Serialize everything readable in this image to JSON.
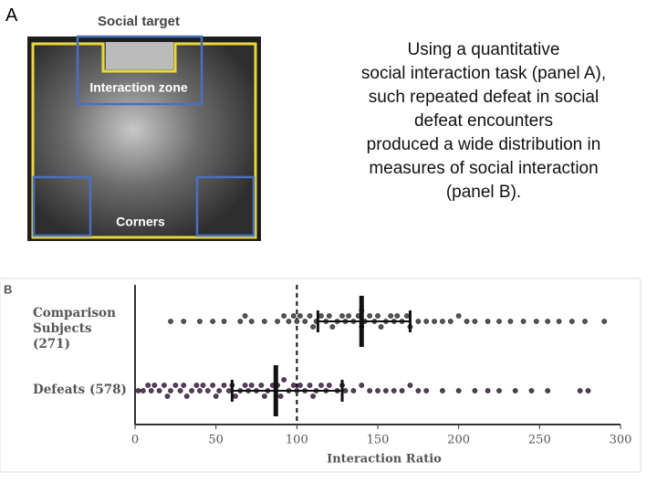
{
  "panel_a": {
    "label": "A",
    "social_target": "Social target",
    "interaction_zone": "Interaction zone",
    "corners": "Corners"
  },
  "text_lines": [
    "Using a quantitative",
    "social interaction task (panel A),",
    "such repeated defeat in social",
    "defeat encounters",
    "produced a wide distribution in",
    "measures of social interaction",
    "(panel B)."
  ],
  "chart_data": {
    "type": "dotplot",
    "label": "B",
    "x_label": "Interaction Ratio",
    "xlim": [
      0,
      300
    ],
    "xticks": [
      0,
      50,
      100,
      150,
      200,
      250,
      300
    ],
    "reference_line": 100,
    "series": [
      {
        "name": "Comparison Subjects (271)",
        "color": "#555555",
        "median": 140,
        "q1": 113,
        "q3": 170,
        "values": [
          22,
          30,
          40,
          48,
          55,
          65,
          68,
          72,
          80,
          88,
          92,
          95,
          98,
          100,
          102,
          105,
          108,
          110,
          112,
          115,
          118,
          120,
          122,
          125,
          128,
          130,
          132,
          135,
          138,
          140,
          140,
          142,
          145,
          148,
          150,
          152,
          155,
          158,
          160,
          162,
          165,
          168,
          170,
          175,
          180,
          185,
          190,
          195,
          200,
          205,
          210,
          218,
          225,
          232,
          240,
          248,
          255,
          262,
          270,
          278,
          290
        ]
      },
      {
        "name": "Defeats (578)",
        "color": "#5b3a60",
        "median": 87,
        "q1": 60,
        "q3": 128,
        "values": [
          2,
          5,
          8,
          10,
          12,
          15,
          18,
          20,
          22,
          25,
          28,
          30,
          32,
          35,
          38,
          40,
          42,
          45,
          48,
          50,
          52,
          55,
          58,
          60,
          62,
          65,
          68,
          70,
          72,
          75,
          78,
          80,
          82,
          85,
          87,
          88,
          90,
          92,
          95,
          98,
          100,
          102,
          105,
          108,
          110,
          112,
          115,
          118,
          120,
          125,
          128,
          130,
          135,
          140,
          145,
          150,
          155,
          160,
          165,
          170,
          175,
          180,
          190,
          200,
          210,
          218,
          225,
          235,
          245,
          255,
          275,
          280
        ]
      }
    ]
  }
}
